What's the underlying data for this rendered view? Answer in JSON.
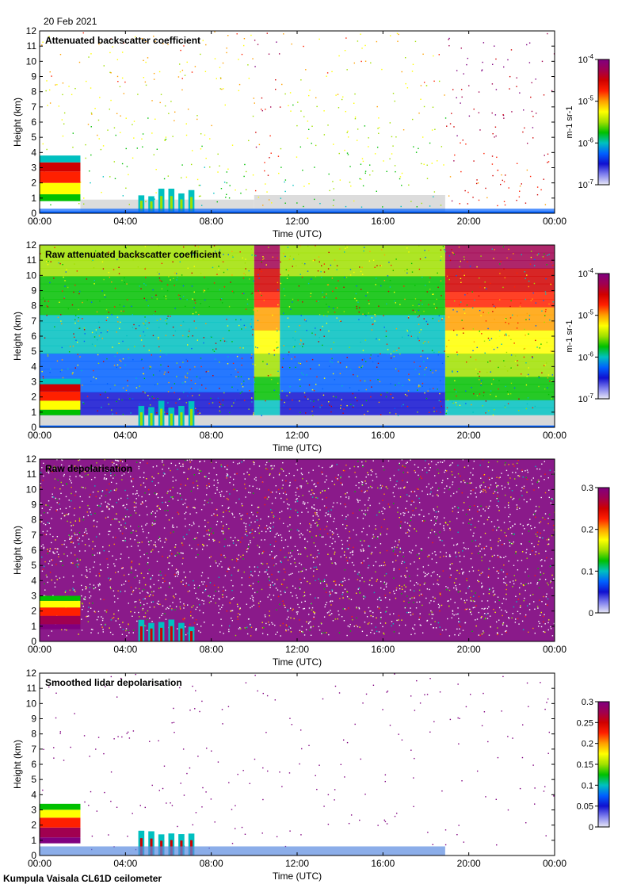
{
  "header": {
    "date": "20 Feb 2021"
  },
  "footer": {
    "instrument": "Kumpula Vaisala CL61D ceilometer"
  },
  "colors": {
    "rainbow": [
      "#e8e8f5",
      "#8080ee",
      "#1010d0",
      "#0060ff",
      "#00c0c0",
      "#00c000",
      "#a0e000",
      "#ffff00",
      "#ffa000",
      "#ff2000",
      "#d00000",
      "#a00050",
      "#800080"
    ]
  },
  "chart_data": [
    {
      "type": "heatmap",
      "title": "Attenuated backscatter coefficient",
      "xlabel": "Time (UTC)",
      "ylabel": "Height (km)",
      "xlim": [
        0,
        24
      ],
      "ylim": [
        0,
        12
      ],
      "xticks": [
        "00:00",
        "04:00",
        "08:00",
        "12:00",
        "16:00",
        "20:00",
        "00:00"
      ],
      "yticks": [
        "0",
        "1",
        "2",
        "3",
        "4",
        "5",
        "6",
        "7",
        "8",
        "9",
        "10",
        "11",
        "12"
      ],
      "colorbar": {
        "scale": "log",
        "ticks": [
          {
            "base": "10",
            "exp": "-4"
          },
          {
            "base": "10",
            "exp": "-5"
          },
          {
            "base": "10",
            "exp": "-6"
          },
          {
            "base": "10",
            "exp": "-7"
          }
        ],
        "unit": "m-1 sr-1"
      },
      "features": [
        {
          "name": "low cloud",
          "x": [
            0,
            1.9
          ],
          "y": [
            0.8,
            3.8
          ]
        },
        {
          "name": "precipitation cells",
          "x": [
            4.6,
            7.4
          ],
          "y": [
            0,
            1.8
          ]
        },
        {
          "name": "surface layer",
          "x": [
            0,
            24
          ],
          "y": [
            0,
            0.3
          ]
        }
      ]
    },
    {
      "type": "heatmap",
      "title": "Raw attenuated backscatter coefficient",
      "xlabel": "Time (UTC)",
      "ylabel": "Height (km)",
      "xlim": [
        0,
        24
      ],
      "ylim": [
        0,
        12
      ],
      "xticks": [
        "00:00",
        "04:00",
        "08:00",
        "12:00",
        "16:00",
        "20:00",
        "00:00"
      ],
      "yticks": [
        "0",
        "1",
        "2",
        "3",
        "4",
        "5",
        "6",
        "7",
        "8",
        "9",
        "10",
        "11",
        "12"
      ],
      "colorbar": {
        "scale": "log",
        "ticks": [
          {
            "base": "10",
            "exp": "-4"
          },
          {
            "base": "10",
            "exp": "-5"
          },
          {
            "base": "10",
            "exp": "-6"
          },
          {
            "base": "10",
            "exp": "-7"
          }
        ],
        "unit": "m-1 sr-1"
      },
      "features": [
        {
          "name": "low cloud",
          "x": [
            0,
            1.9
          ],
          "y": [
            0.8,
            3.2
          ]
        },
        {
          "name": "precipitation cells",
          "x": [
            4.6,
            7.4
          ],
          "y": [
            0,
            1.8
          ]
        },
        {
          "name": "noisy period",
          "x": [
            10,
            11.2
          ],
          "y": [
            0.8,
            12
          ]
        },
        {
          "name": "noisy period",
          "x": [
            18.9,
            24
          ],
          "y": [
            0.8,
            12
          ]
        }
      ]
    },
    {
      "type": "heatmap",
      "title": "Raw depolarisation",
      "xlabel": "Time (UTC)",
      "ylabel": "Height (km)",
      "xlim": [
        0,
        24
      ],
      "ylim": [
        0,
        12
      ],
      "xticks": [
        "00:00",
        "04:00",
        "08:00",
        "12:00",
        "16:00",
        "20:00",
        "00:00"
      ],
      "yticks": [
        "0",
        "1",
        "2",
        "3",
        "4",
        "5",
        "6",
        "7",
        "8",
        "9",
        "10",
        "11",
        "12"
      ],
      "colorbar": {
        "scale": "linear",
        "ticks": [
          "0.3",
          "0.2",
          "0.1",
          "0"
        ],
        "range": [
          0,
          0.3
        ]
      },
      "features": [
        {
          "name": "low cloud",
          "x": [
            0,
            1.9
          ],
          "y": [
            0.8,
            3.0
          ]
        },
        {
          "name": "precipitation cells",
          "x": [
            4.6,
            7.4
          ],
          "y": [
            0,
            1.6
          ]
        }
      ]
    },
    {
      "type": "heatmap",
      "title": "Smoothed lidar depolarisation",
      "xlabel": "Time (UTC)",
      "ylabel": "Height (km)",
      "xlim": [
        0,
        24
      ],
      "ylim": [
        0,
        12
      ],
      "xticks": [
        "00:00",
        "04:00",
        "08:00",
        "12:00",
        "16:00",
        "20:00",
        "00:00"
      ],
      "yticks": [
        "0",
        "1",
        "2",
        "3",
        "4",
        "5",
        "6",
        "7",
        "8",
        "9",
        "10",
        "11",
        "12"
      ],
      "colorbar": {
        "scale": "linear",
        "ticks": [
          "0.3",
          "0.25",
          "0.2",
          "0.15",
          "0.1",
          "0.05",
          "0"
        ],
        "range": [
          0,
          0.3
        ]
      },
      "features": [
        {
          "name": "low cloud",
          "x": [
            0,
            1.9
          ],
          "y": [
            0.8,
            3.4
          ]
        },
        {
          "name": "precipitation cells",
          "x": [
            4.6,
            7.4
          ],
          "y": [
            0,
            1.8
          ]
        },
        {
          "name": "boundary layer",
          "x": [
            0,
            18.9
          ],
          "y": [
            0,
            0.6
          ]
        }
      ]
    }
  ]
}
